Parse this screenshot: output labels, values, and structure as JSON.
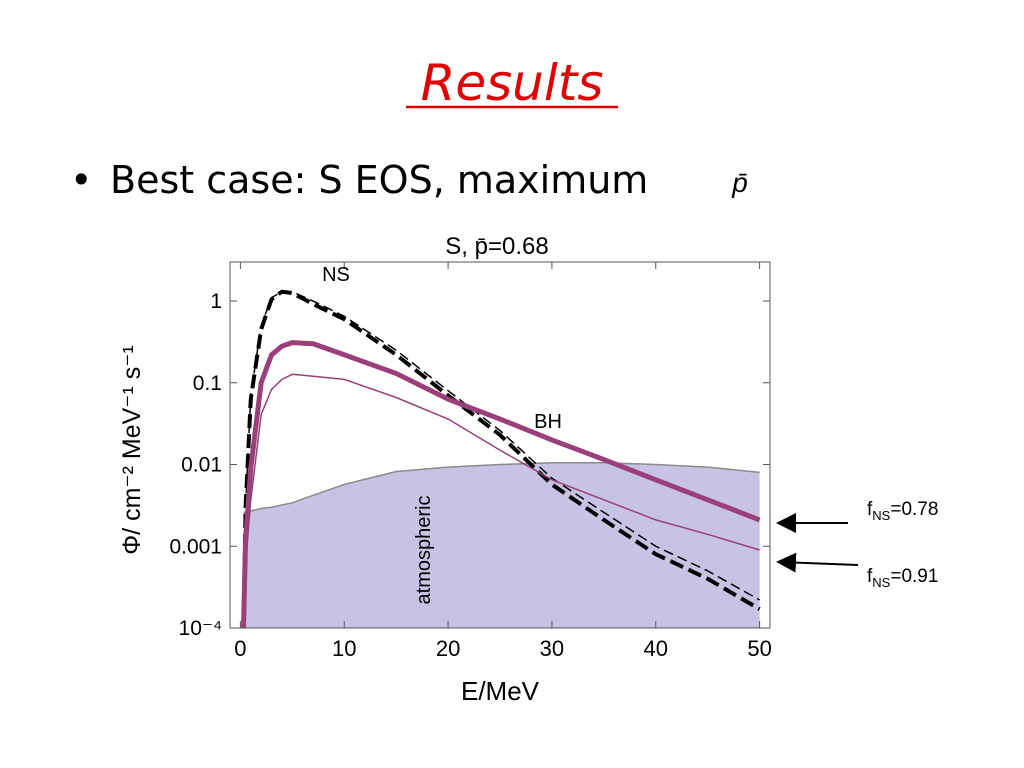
{
  "slide": {
    "title": "Results",
    "bullet": "Best case: S EOS, maximum",
    "bullet_symbol": "p̄"
  },
  "chart_data": {
    "type": "line",
    "title": "S, p̄=0.68",
    "x_label": "E/MeV",
    "y_label": "Φ/ cm⁻² MeV⁻¹ s⁻¹",
    "x": [
      0.3,
      0.5,
      1,
      2,
      3,
      4,
      5,
      7,
      10,
      15,
      20,
      25,
      30,
      35,
      40,
      45,
      50
    ],
    "series": [
      {
        "color": "#c7c3e4",
        "fill": true,
        "style": "solid",
        "width": 1.5,
        "stroke": "#8a8a8a",
        "values": [
          0.0026,
          0.0026,
          0.0027,
          0.0029,
          0.003,
          0.0032,
          0.0034,
          0.0042,
          0.0057,
          0.0082,
          0.0093,
          0.01,
          0.0105,
          0.0105,
          0.01,
          0.0093,
          0.008
        ]
      },
      {
        "color": "#000000",
        "style": "dashed",
        "width": 1.5,
        "values": [
          0.0001,
          0.003,
          0.07,
          0.5,
          1.1,
          1.3,
          1.3,
          1.0,
          0.65,
          0.25,
          0.08,
          0.026,
          0.0068,
          0.0026,
          0.001,
          0.0005,
          0.00022
        ]
      },
      {
        "color": "#000000",
        "style": "dashed",
        "width": 4,
        "values": [
          0.0001,
          0.003,
          0.063,
          0.45,
          1.05,
          1.3,
          1.25,
          0.92,
          0.6,
          0.22,
          0.07,
          0.023,
          0.0057,
          0.0021,
          0.0008,
          0.0004,
          0.00017
        ]
      },
      {
        "color": "#9a3f7a",
        "style": "solid",
        "width": 5,
        "values": [
          0.0001,
          0.0012,
          0.009,
          0.1,
          0.22,
          0.28,
          0.31,
          0.3,
          0.22,
          0.13,
          0.063,
          0.036,
          0.02,
          0.0115,
          0.0065,
          0.0037,
          0.0021
        ]
      },
      {
        "color": "#9a3f7a",
        "style": "solid",
        "width": 1.5,
        "values": [
          0.0001,
          0.0006,
          0.0037,
          0.041,
          0.083,
          0.11,
          0.127,
          0.12,
          0.11,
          0.066,
          0.036,
          0.015,
          0.0065,
          0.0037,
          0.0021,
          0.0014,
          0.0009
        ]
      }
    ],
    "log_y": true,
    "xlim": [
      -1,
      51
    ],
    "ylim": [
      0.0001,
      3
    ],
    "xticks": [
      0,
      10,
      20,
      30,
      40,
      50
    ],
    "yticks": [
      {
        "value": 0.0001,
        "label": "10⁻⁴"
      },
      0.001,
      0.01,
      0.1,
      1
    ],
    "annotations": [
      "NS",
      "BH",
      "atmospheric"
    ],
    "f_labels": [
      {
        "symbol": "f",
        "subscript": "NS",
        "value": "=0.78"
      },
      {
        "symbol": "f",
        "subscript": "NS",
        "value": "=0.91"
      }
    ]
  }
}
